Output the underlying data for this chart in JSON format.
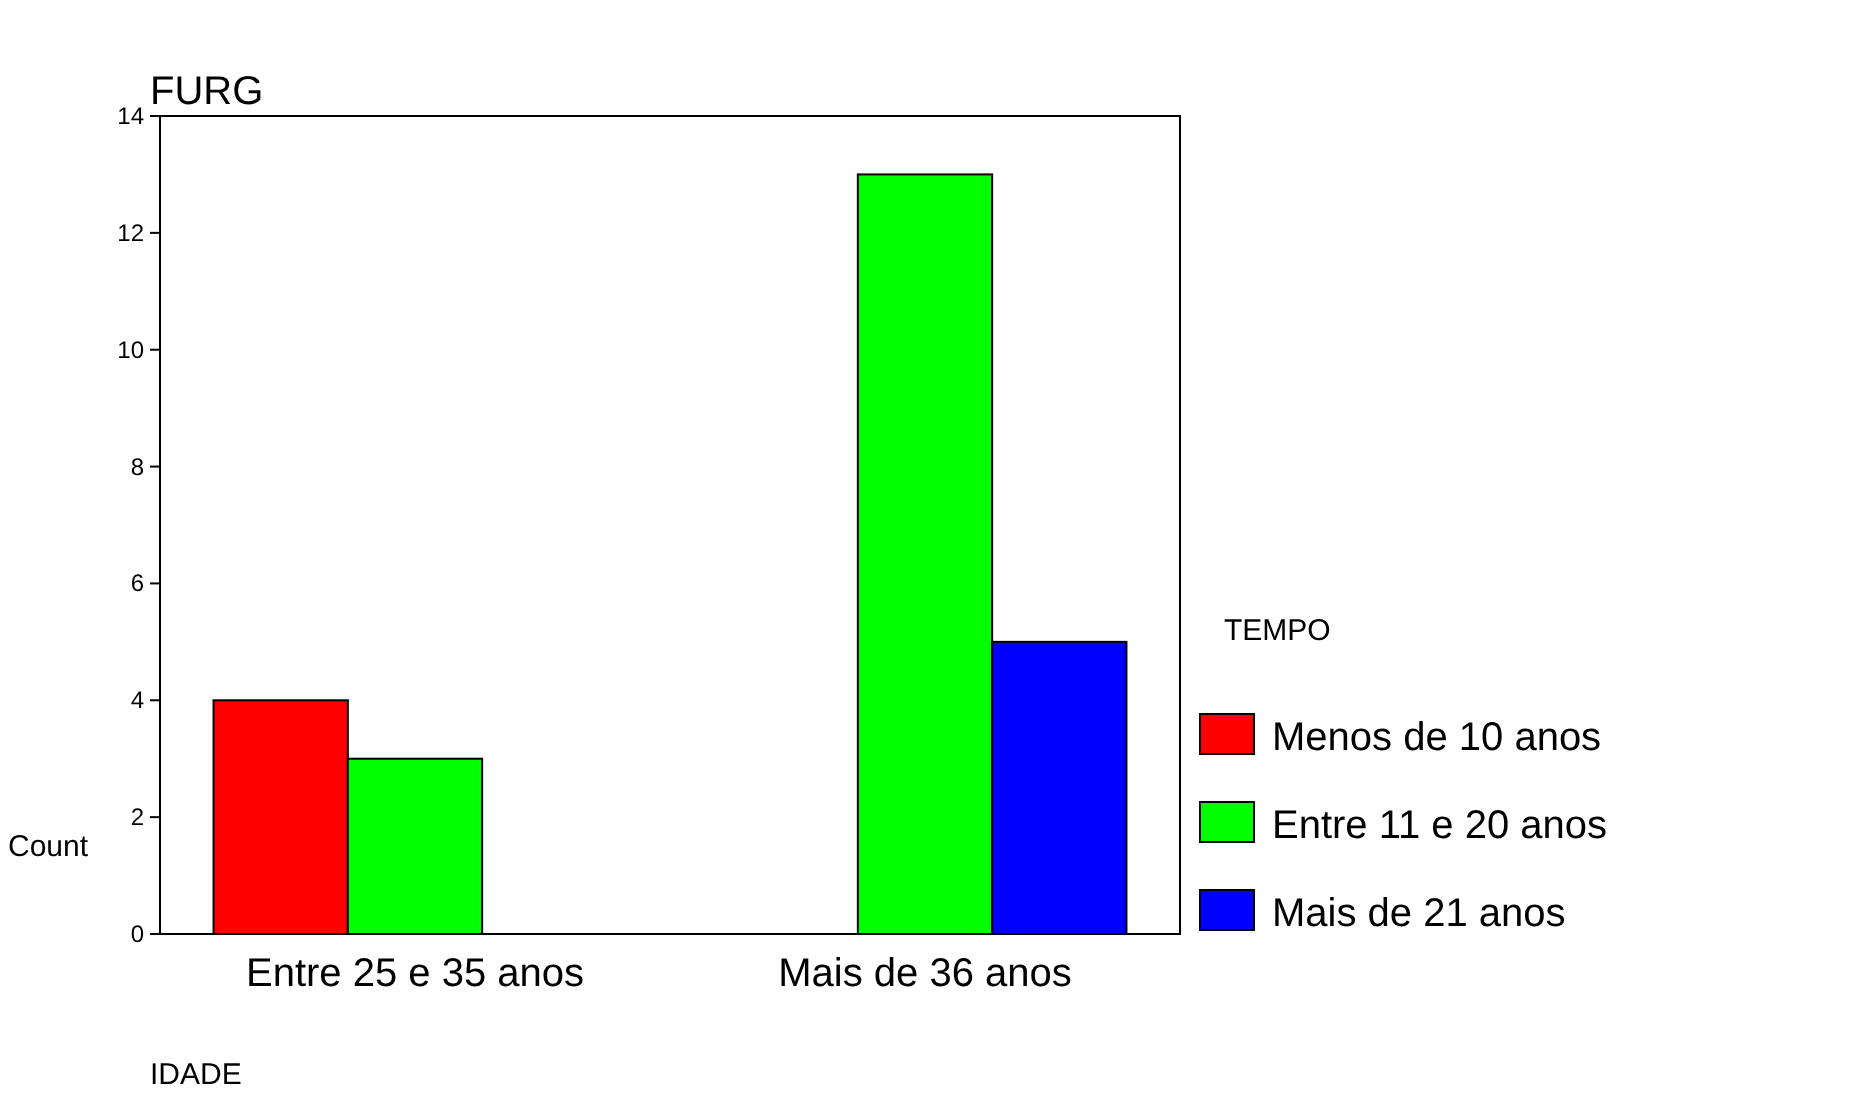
{
  "chart_data": {
    "type": "bar",
    "title": "FURG",
    "xlabel": "IDADE",
    "ylabel": "Count",
    "legend_title": "TEMPO",
    "categories": [
      "Entre 25 e 35 anos",
      "Mais de 36 anos"
    ],
    "series": [
      {
        "name": "Menos de 10 anos",
        "color": "#ff0000",
        "values": [
          4,
          null
        ]
      },
      {
        "name": "Entre 11 e 20 anos",
        "color": "#00ff00",
        "values": [
          3,
          13
        ]
      },
      {
        "name": "Mais de 21 anos",
        "color": "#0000ff",
        "values": [
          null,
          5
        ]
      }
    ],
    "ylim": [
      0,
      14
    ],
    "yticks": [
      0,
      2,
      4,
      6,
      8,
      10,
      12,
      14
    ],
    "grid": false,
    "legend": "right"
  }
}
